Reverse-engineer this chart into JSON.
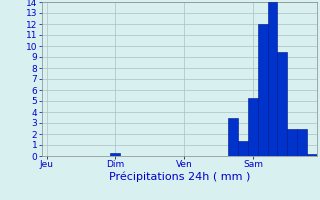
{
  "xlabel": "Précipitations 24h ( mm )",
  "ylim": [
    0,
    14
  ],
  "bar_color": "#0033cc",
  "bar_edge_color": "#001188",
  "background_color": "#d8f0f0",
  "grid_color": "#aabbbb",
  "text_color": "#0000cc",
  "bar_values": [
    0,
    0,
    0,
    0,
    0,
    0,
    0,
    0.3,
    0,
    0,
    0,
    0,
    0,
    0,
    0,
    0,
    0,
    0,
    0,
    3.5,
    1.4,
    5.3,
    12.0,
    14.0,
    9.5,
    2.5,
    2.5,
    0.2
  ],
  "day_labels": [
    "Jeu",
    "Dim",
    "Ven",
    "Sam"
  ],
  "day_positions": [
    0,
    7,
    14,
    21
  ],
  "yticks": [
    0,
    1,
    2,
    3,
    4,
    5,
    6,
    7,
    8,
    9,
    10,
    11,
    12,
    13,
    14
  ],
  "font_size_label": 8,
  "font_size_tick": 6.5
}
